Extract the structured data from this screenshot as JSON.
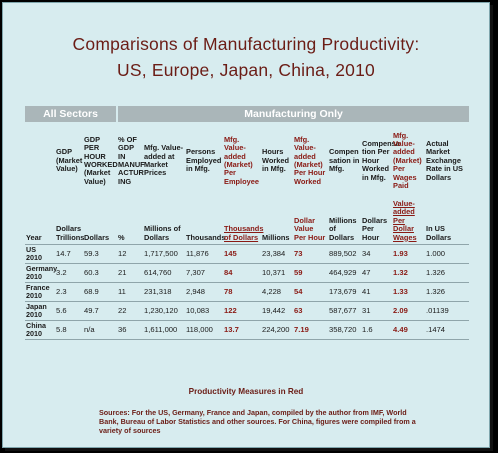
{
  "title": {
    "line1": "Comparisons of Manufacturing Productivity:",
    "line2": "US, Europe, Japan, China, 2010"
  },
  "bands": {
    "all_sectors": "All Sectors",
    "manufacturing": "Manufacturing Only"
  },
  "columns": [
    {
      "header": "",
      "unit": "Year"
    },
    {
      "header": "GDP (Market Value)",
      "unit": "Dollars Trillions"
    },
    {
      "header": "GDP PER HOUR WORKED (Market Value)",
      "unit": "Dollars"
    },
    {
      "header": "% OF GDP IN MANUF ACTUR ING",
      "unit": "%"
    },
    {
      "header": "Mfg. Value-added at Market Prices",
      "unit": "Millions of Dollars"
    },
    {
      "header": "Persons Employed in Mfg.",
      "unit": "Thousands"
    },
    {
      "header": "Mfg. Value-added (Market) Per Employee",
      "unit": "Thousands of Dollars"
    },
    {
      "header": "Hours Worked in Mfg.",
      "unit": "Millions"
    },
    {
      "header": "Mfg. Value-added (Market) Per Hour Worked",
      "unit": "Dollar Value Per Hour"
    },
    {
      "header": "Compen sation in Mfg.",
      "unit": "Millions of Dollars"
    },
    {
      "header": "Compensa tion Per Hour Worked in Mfg.",
      "unit": "Dollars Per Hour"
    },
    {
      "header": "Mfg. Value-added (Market) Per Wages Paid",
      "unit": "Value-added Per Dollar Wages"
    },
    {
      "header": "Actual Market Exchange Rate in US Dollars",
      "unit": "In US Dollars"
    }
  ],
  "rows": [
    {
      "country": "US",
      "year": "2010",
      "values": [
        "14.7",
        "59.3",
        "12",
        "1,717,500",
        "11,876",
        "145",
        "23,384",
        "73",
        "889,502",
        "34",
        "1.93",
        "1.000"
      ]
    },
    {
      "country": "Germany",
      "year": "2010",
      "values": [
        "3.2",
        "60.3",
        "21",
        "614,760",
        "7,307",
        "84",
        "10,371",
        "59",
        "464,929",
        "47",
        "1.32",
        "1.326"
      ]
    },
    {
      "country": "France",
      "year": "2010",
      "values": [
        "2.3",
        "68.9",
        "11",
        "231,318",
        "2,948",
        "78",
        "4,228",
        "54",
        "173,679",
        "41",
        "1.33",
        "1.326"
      ]
    },
    {
      "country": "Japan",
      "year": "2010",
      "values": [
        "5.6",
        "49.7",
        "22",
        "1,230,120",
        "10,083",
        "122",
        "19,442",
        "63",
        "587,677",
        "31",
        "2.09",
        ".01139"
      ]
    },
    {
      "country": "China",
      "year": "2010",
      "values": [
        "5.8",
        "n/a",
        "36",
        "1,611,000",
        "118,000",
        "13.7",
        "224,200",
        "7.19",
        "358,720",
        "1.6",
        "4.49",
        ".1474"
      ]
    }
  ],
  "note": "Productivity Measures in Red",
  "sources": "Sources: For the US, Germany, France and Japan, compiled by the author from IMF, World Bank, Bureau of Labor Statistics and other sources. For China, figures were compiled from a variety of sources",
  "colors": {
    "accent": "#6b1d16",
    "background": "#d7ecef",
    "band": "#aab6b9"
  }
}
